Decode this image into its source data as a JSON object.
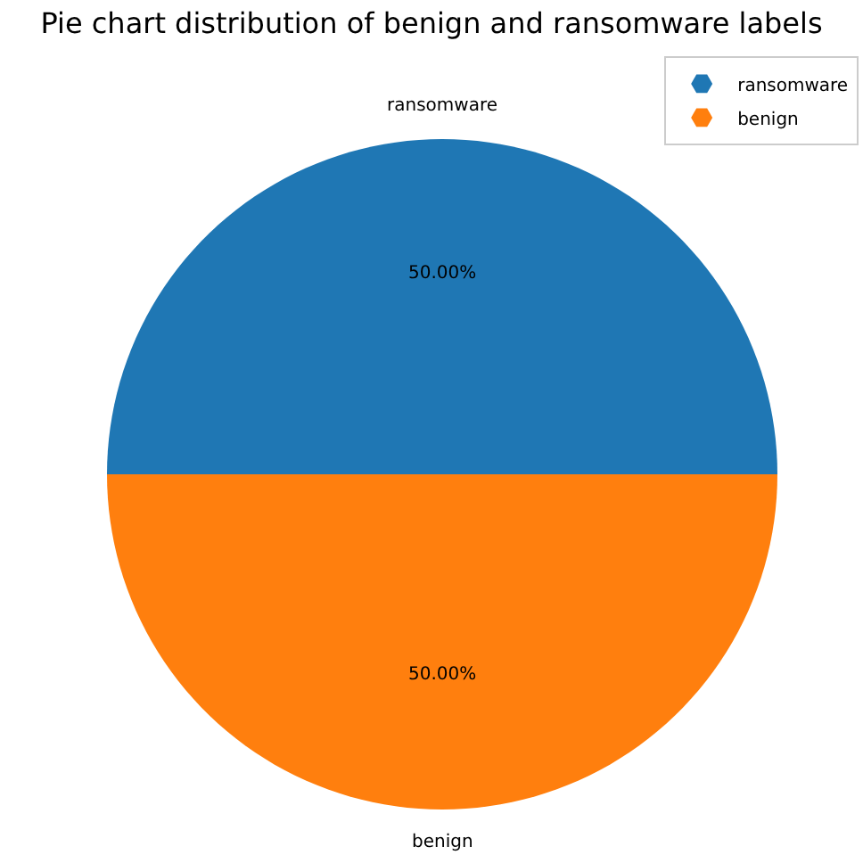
{
  "chart_data": {
    "type": "pie",
    "title": "Pie chart distribution of benign and ransomware labels",
    "categories": [
      "ransomware",
      "benign"
    ],
    "values": [
      50,
      50
    ],
    "value_labels": [
      "50.00%",
      "50.00%"
    ],
    "colors": [
      "#1f77b4",
      "#ff7f0e"
    ],
    "legend": "top right"
  }
}
